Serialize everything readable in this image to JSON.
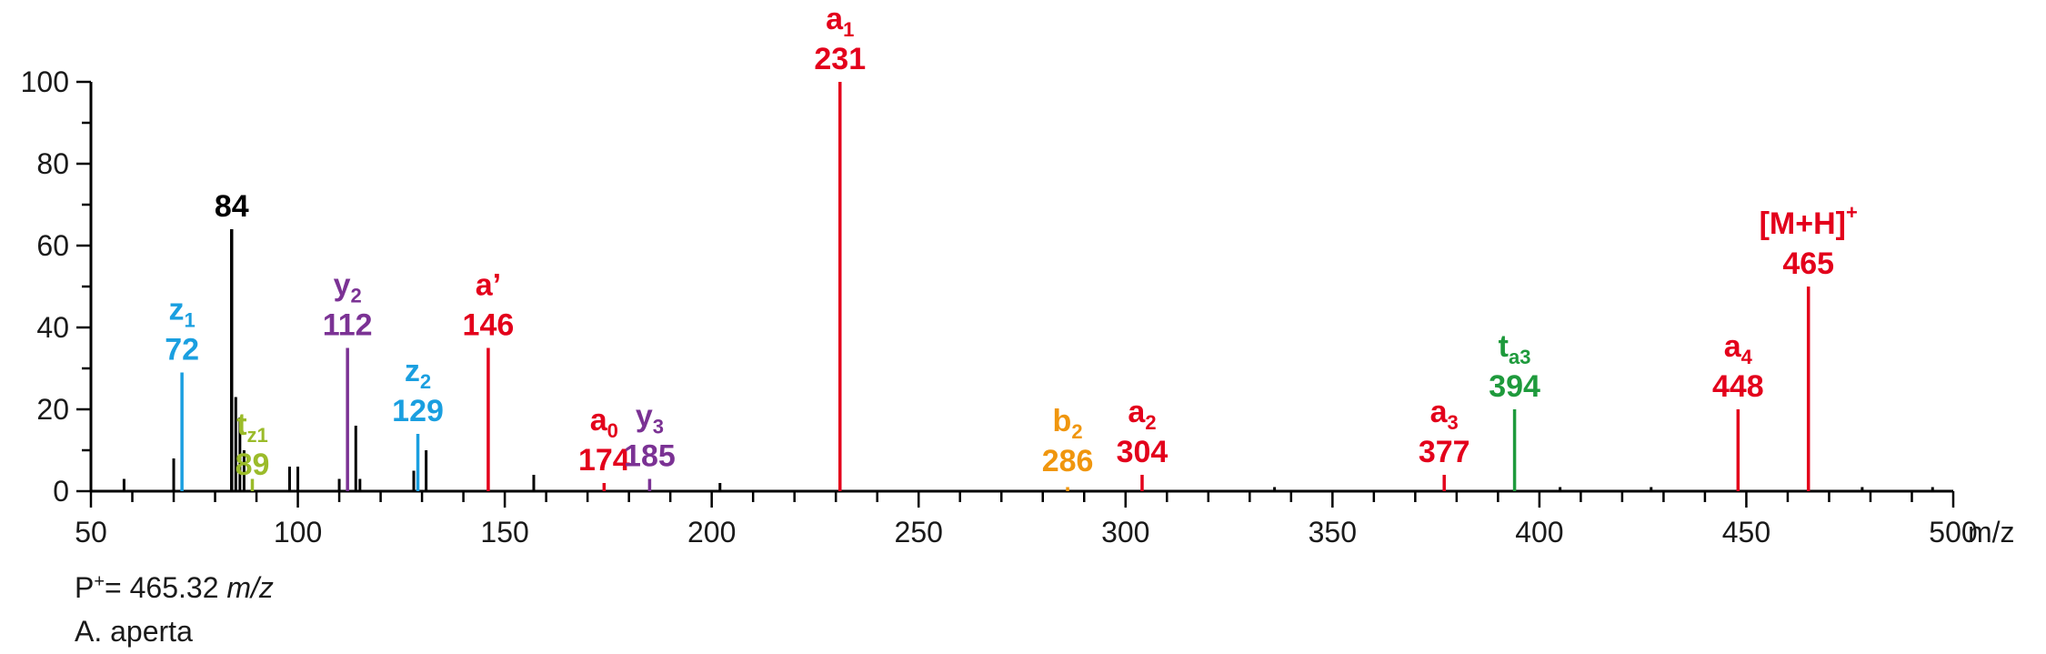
{
  "chart_data": {
    "type": "bar",
    "xlabel": "m/z",
    "ylabel": "",
    "xlim": [
      50,
      500
    ],
    "ylim": [
      0,
      100
    ],
    "x_ticks": [
      50,
      100,
      150,
      200,
      250,
      300,
      350,
      400,
      450,
      500
    ],
    "y_ticks": [
      0,
      20,
      40,
      60,
      80,
      100
    ],
    "annotated_peaks": [
      {
        "mz": 72,
        "intensity": 29,
        "label": "z",
        "sub": "1",
        "sup": "",
        "number": "72",
        "color": "#1a9fe0"
      },
      {
        "mz": 84,
        "intensity": 64,
        "label": "",
        "sub": "",
        "sup": "",
        "number": "84",
        "color": "#000000"
      },
      {
        "mz": 89,
        "intensity": 3,
        "label": "t",
        "sub": "z1",
        "sup": "",
        "number": "89",
        "color": "#9bbb2a"
      },
      {
        "mz": 112,
        "intensity": 35,
        "label": "y",
        "sub": "2",
        "sup": "",
        "number": "112",
        "color": "#7b3294"
      },
      {
        "mz": 129,
        "intensity": 14,
        "label": "z",
        "sub": "2",
        "sup": "",
        "number": "129",
        "color": "#1a9fe0"
      },
      {
        "mz": 146,
        "intensity": 35,
        "label": "a’",
        "sub": "",
        "sup": "",
        "number": "146",
        "color": "#e3001b"
      },
      {
        "mz": 174,
        "intensity": 2,
        "label": "a",
        "sub": "0",
        "sup": "",
        "number": "174",
        "color": "#e3001b"
      },
      {
        "mz": 185,
        "intensity": 3,
        "label": "y",
        "sub": "3",
        "sup": "",
        "number": "185",
        "color": "#7b3294"
      },
      {
        "mz": 231,
        "intensity": 100,
        "label": "a",
        "sub": "1",
        "sup": "",
        "number": "231",
        "color": "#e3001b"
      },
      {
        "mz": 286,
        "intensity": 1,
        "label": "b",
        "sub": "2",
        "sup": "",
        "number": "286",
        "color": "#f0960e"
      },
      {
        "mz": 304,
        "intensity": 4,
        "label": "a",
        "sub": "2",
        "sup": "",
        "number": "304",
        "color": "#e3001b"
      },
      {
        "mz": 377,
        "intensity": 4,
        "label": "a",
        "sub": "3",
        "sup": "",
        "number": "377",
        "color": "#e3001b"
      },
      {
        "mz": 394,
        "intensity": 20,
        "label": "t",
        "sub": "a3",
        "sup": "",
        "number": "394",
        "color": "#1e9a3c"
      },
      {
        "mz": 448,
        "intensity": 20,
        "label": "a",
        "sub": "4",
        "sup": "",
        "number": "448",
        "color": "#e3001b"
      },
      {
        "mz": 465,
        "intensity": 50,
        "label": "[M+H]",
        "sub": "",
        "sup": "+",
        "number": "465",
        "color": "#e3001b"
      }
    ],
    "minor_peaks": [
      {
        "mz": 58,
        "intensity": 3
      },
      {
        "mz": 70,
        "intensity": 8
      },
      {
        "mz": 85,
        "intensity": 23
      },
      {
        "mz": 86,
        "intensity": 18
      },
      {
        "mz": 87,
        "intensity": 10
      },
      {
        "mz": 98,
        "intensity": 6
      },
      {
        "mz": 100,
        "intensity": 6
      },
      {
        "mz": 110,
        "intensity": 3
      },
      {
        "mz": 114,
        "intensity": 16
      },
      {
        "mz": 115,
        "intensity": 3
      },
      {
        "mz": 128,
        "intensity": 5
      },
      {
        "mz": 131,
        "intensity": 10
      },
      {
        "mz": 157,
        "intensity": 4
      },
      {
        "mz": 202,
        "intensity": 2
      },
      {
        "mz": 336,
        "intensity": 1
      },
      {
        "mz": 405,
        "intensity": 1
      },
      {
        "mz": 427,
        "intensity": 1
      },
      {
        "mz": 478,
        "intensity": 1
      },
      {
        "mz": 495,
        "intensity": 1
      }
    ]
  },
  "annotations": {
    "precursor_prefix": "P",
    "precursor_sup": "+",
    "precursor_value": "= 465.32 ",
    "precursor_unit": "m/z",
    "species": "A. aperta"
  }
}
